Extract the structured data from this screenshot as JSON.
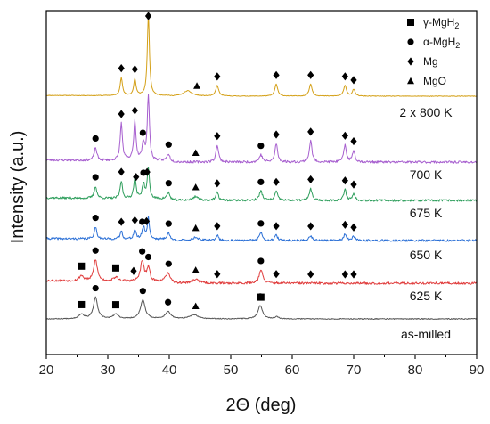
{
  "chart_data": {
    "type": "line",
    "title": "",
    "xlabel": "2Θ (deg)",
    "ylabel": "Intensity (a.u.)",
    "xlim": [
      20,
      90
    ],
    "xticks": [
      20,
      30,
      40,
      50,
      60,
      70,
      80,
      90
    ],
    "y_tick_labels": false,
    "grid": false,
    "legend_position": "top-right",
    "phases": [
      {
        "key": "gamma",
        "name": "γ-MgH",
        "sub": "2",
        "marker": "square"
      },
      {
        "key": "alpha",
        "name": "α-MgH",
        "sub": "2",
        "marker": "circle"
      },
      {
        "key": "mg",
        "name": "Mg",
        "sub": "",
        "marker": "diamond"
      },
      {
        "key": "mgo",
        "name": "MgO",
        "sub": "",
        "marker": "triangle"
      }
    ],
    "series": [
      {
        "name": "2 x 800 K",
        "color": "#d4a017",
        "baseline": 0.05,
        "peaks": [
          [
            32.2,
            1.2,
            0.22
          ],
          [
            34.4,
            1.1,
            0.22
          ],
          [
            36.6,
            5.4,
            0.2
          ],
          [
            43.0,
            0.35,
            0.8
          ],
          [
            47.8,
            0.7,
            0.28
          ],
          [
            57.4,
            0.8,
            0.28
          ],
          [
            63.0,
            0.8,
            0.28
          ],
          [
            68.6,
            0.7,
            0.28
          ],
          [
            70.0,
            0.45,
            0.25
          ]
        ],
        "markers": [
          {
            "phase": "mg",
            "x": 32.2
          },
          {
            "phase": "mg",
            "x": 34.4
          },
          {
            "phase": "mg",
            "x": 36.6
          },
          {
            "phase": "mgo",
            "x": 44.5
          },
          {
            "phase": "mg",
            "x": 47.8
          },
          {
            "phase": "mg",
            "x": 57.4
          },
          {
            "phase": "mg",
            "x": 63.0
          },
          {
            "phase": "mg",
            "x": 68.6
          },
          {
            "phase": "mg",
            "x": 70.0
          }
        ]
      },
      {
        "name": "700 K",
        "color": "#a75fcf",
        "baseline": 0.15,
        "peaks": [
          [
            28.0,
            0.9,
            0.25
          ],
          [
            32.2,
            2.6,
            0.22
          ],
          [
            34.4,
            2.8,
            0.22
          ],
          [
            35.8,
            1.2,
            0.25
          ],
          [
            36.6,
            4.6,
            0.2
          ],
          [
            39.9,
            0.5,
            0.3
          ],
          [
            47.8,
            1.2,
            0.25
          ],
          [
            54.9,
            0.5,
            0.3
          ],
          [
            57.4,
            1.3,
            0.25
          ],
          [
            63.0,
            1.5,
            0.25
          ],
          [
            68.6,
            1.2,
            0.25
          ],
          [
            70.0,
            0.8,
            0.25
          ]
        ],
        "markers": [
          {
            "phase": "alpha",
            "x": 28.0
          },
          {
            "phase": "mg",
            "x": 32.2
          },
          {
            "phase": "mg",
            "x": 34.4
          },
          {
            "phase": "alpha",
            "x": 35.7
          },
          {
            "phase": "alpha",
            "x": 39.9
          },
          {
            "phase": "mgo",
            "x": 44.3
          },
          {
            "phase": "mg",
            "x": 47.8
          },
          {
            "phase": "alpha",
            "x": 54.9
          },
          {
            "phase": "mg",
            "x": 57.4
          },
          {
            "phase": "mg",
            "x": 63.0
          },
          {
            "phase": "mg",
            "x": 68.6
          },
          {
            "phase": "mg",
            "x": 70.0
          }
        ]
      },
      {
        "name": "675 K",
        "color": "#2e9e5c",
        "baseline": 0.2,
        "peaks": [
          [
            28.0,
            0.9,
            0.25
          ],
          [
            32.2,
            1.3,
            0.22
          ],
          [
            34.4,
            1.6,
            0.22
          ],
          [
            35.8,
            1.1,
            0.25
          ],
          [
            36.6,
            2.3,
            0.2
          ],
          [
            39.9,
            0.5,
            0.3
          ],
          [
            44.3,
            0.3,
            0.5
          ],
          [
            47.8,
            0.6,
            0.25
          ],
          [
            54.9,
            0.7,
            0.3
          ],
          [
            57.4,
            0.7,
            0.25
          ],
          [
            63.0,
            0.9,
            0.25
          ],
          [
            68.6,
            0.8,
            0.25
          ],
          [
            70.0,
            0.5,
            0.25
          ]
        ],
        "markers": [
          {
            "phase": "alpha",
            "x": 28.0
          },
          {
            "phase": "mg",
            "x": 32.2
          },
          {
            "phase": "mg",
            "x": 34.6
          },
          {
            "phase": "mg",
            "x": 36.4
          },
          {
            "phase": "alpha",
            "x": 35.8
          },
          {
            "phase": "alpha",
            "x": 39.9
          },
          {
            "phase": "mgo",
            "x": 44.3
          },
          {
            "phase": "mg",
            "x": 47.8
          },
          {
            "phase": "alpha",
            "x": 54.9
          },
          {
            "phase": "mg",
            "x": 57.4
          },
          {
            "phase": "mg",
            "x": 63.0
          },
          {
            "phase": "mg",
            "x": 68.6
          },
          {
            "phase": "mg",
            "x": 70.0
          }
        ]
      },
      {
        "name": "650 K",
        "color": "#2a6fd6",
        "baseline": 0.15,
        "peaks": [
          [
            28.0,
            0.9,
            0.25
          ],
          [
            32.2,
            0.6,
            0.22
          ],
          [
            34.4,
            0.7,
            0.22
          ],
          [
            35.8,
            0.9,
            0.25
          ],
          [
            36.6,
            1.6,
            0.2
          ],
          [
            39.9,
            0.5,
            0.3
          ],
          [
            44.3,
            0.25,
            0.5
          ],
          [
            47.8,
            0.4,
            0.25
          ],
          [
            54.9,
            0.6,
            0.3
          ],
          [
            57.4,
            0.4,
            0.25
          ],
          [
            63.0,
            0.4,
            0.25
          ],
          [
            68.6,
            0.5,
            0.25
          ],
          [
            70.0,
            0.3,
            0.25
          ]
        ],
        "markers": [
          {
            "phase": "alpha",
            "x": 28.0
          },
          {
            "phase": "mg",
            "x": 32.2
          },
          {
            "phase": "mg",
            "x": 34.4
          },
          {
            "phase": "alpha",
            "x": 35.6
          },
          {
            "phase": "mg",
            "x": 36.3
          },
          {
            "phase": "alpha",
            "x": 39.9
          },
          {
            "phase": "mgo",
            "x": 44.3
          },
          {
            "phase": "mg",
            "x": 47.8
          },
          {
            "phase": "alpha",
            "x": 54.9
          },
          {
            "phase": "mg",
            "x": 57.4
          },
          {
            "phase": "mg",
            "x": 63.0
          },
          {
            "phase": "mg",
            "x": 68.6
          },
          {
            "phase": "mg",
            "x": 70.0
          }
        ]
      },
      {
        "name": "625 K",
        "color": "#e03c3c",
        "baseline": 0.2,
        "peaks": [
          [
            25.7,
            0.4,
            0.4
          ],
          [
            28.0,
            1.6,
            0.35
          ],
          [
            31.3,
            0.3,
            0.45
          ],
          [
            35.6,
            1.5,
            0.35
          ],
          [
            36.6,
            1.0,
            0.3
          ],
          [
            39.8,
            0.7,
            0.4
          ],
          [
            44.3,
            0.3,
            0.6
          ],
          [
            54.9,
            1.0,
            0.35
          ]
        ],
        "markers": [
          {
            "phase": "gamma",
            "x": 25.7
          },
          {
            "phase": "alpha",
            "x": 28.0
          },
          {
            "phase": "gamma",
            "x": 31.3
          },
          {
            "phase": "mg",
            "x": 34.2
          },
          {
            "phase": "alpha",
            "x": 35.6
          },
          {
            "phase": "alpha",
            "x": 36.6
          },
          {
            "phase": "alpha",
            "x": 39.9
          },
          {
            "phase": "mgo",
            "x": 44.3
          },
          {
            "phase": "mg",
            "x": 47.8
          },
          {
            "phase": "alpha",
            "x": 54.9
          },
          {
            "phase": "mg",
            "x": 57.4
          },
          {
            "phase": "mg",
            "x": 63.0
          },
          {
            "phase": "mg",
            "x": 68.6
          },
          {
            "phase": "mg",
            "x": 70.0
          }
        ]
      },
      {
        "name": "as-milled",
        "color": "#555555",
        "baseline": 0.0,
        "peaks": [
          [
            25.7,
            0.35,
            0.5
          ],
          [
            28.0,
            1.6,
            0.4
          ],
          [
            31.3,
            0.35,
            0.5
          ],
          [
            35.7,
            1.4,
            0.45
          ],
          [
            39.8,
            0.55,
            0.5
          ],
          [
            44.0,
            0.3,
            0.8
          ],
          [
            54.8,
            1.0,
            0.45
          ],
          [
            57.5,
            0.15,
            0.4
          ]
        ],
        "markers": [
          {
            "phase": "gamma",
            "x": 25.7
          },
          {
            "phase": "alpha",
            "x": 28.0
          },
          {
            "phase": "gamma",
            "x": 31.3
          },
          {
            "phase": "alpha",
            "x": 35.7
          },
          {
            "phase": "alpha",
            "x": 39.8
          },
          {
            "phase": "mgo",
            "x": 44.3
          },
          {
            "phase": "gamma",
            "x": 54.9
          },
          {
            "phase": "alpha",
            "x": 54.8
          }
        ]
      }
    ]
  }
}
